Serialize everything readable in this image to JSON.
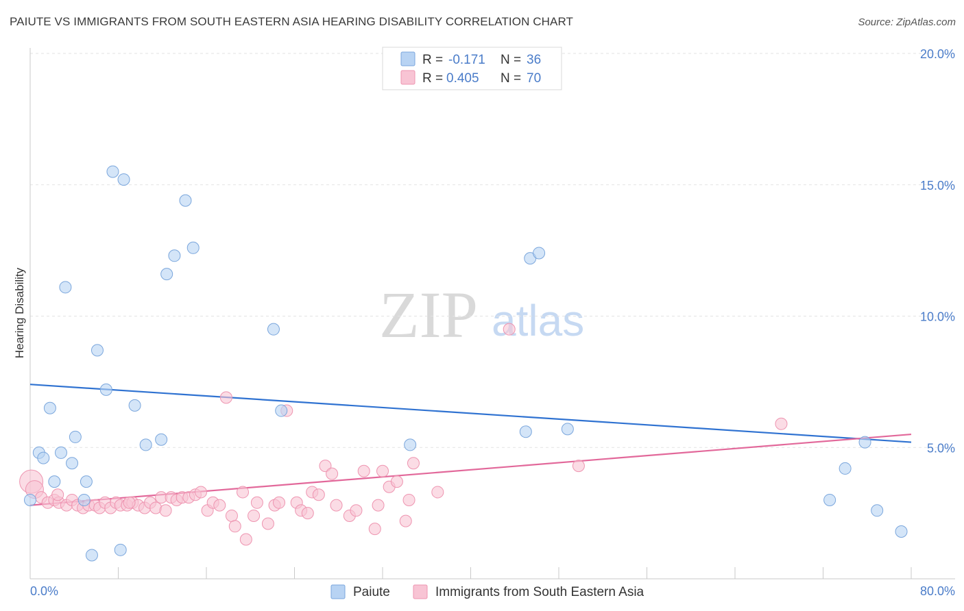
{
  "title": "PAIUTE VS IMMIGRANTS FROM SOUTH EASTERN ASIA HEARING DISABILITY CORRELATION CHART",
  "source": "Source: ZipAtlas.com",
  "watermark": {
    "zip": "ZIP",
    "atlas": "atlas"
  },
  "colors": {
    "paiute_fill": "#b8d3f3",
    "paiute_stroke": "#7aa6dc",
    "paiute_line": "#2f72d1",
    "immig_fill": "#f8c4d4",
    "immig_stroke": "#ee94b0",
    "immig_line": "#e2689a",
    "tick_text": "#4a7cc9",
    "grid": "#e3e3e3"
  },
  "stats_legend": {
    "r_label": "R =",
    "n_label": "N =",
    "rows": [
      {
        "series": "Paiute",
        "r": "-0.171",
        "n": "36"
      },
      {
        "series": "Immigrants from South Eastern Asia",
        "r": "0.405",
        "n": "70"
      }
    ]
  },
  "chart_data": {
    "type": "scatter",
    "title": "PAIUTE VS IMMIGRANTS FROM SOUTH EASTERN ASIA HEARING DISABILITY CORRELATION CHART",
    "xlabel": "",
    "ylabel": "Hearing Disability",
    "xlim": [
      0,
      80
    ],
    "ylim": [
      0,
      20
    ],
    "x_tick_labels": [
      "0.0%",
      "80.0%"
    ],
    "y_ticks": [
      5,
      10,
      15,
      20
    ],
    "y_tick_labels": [
      "5.0%",
      "10.0%",
      "15.0%",
      "20.0%"
    ],
    "grid": true,
    "legend": [
      "Paiute",
      "Immigrants from South Eastern Asia"
    ],
    "series": [
      {
        "name": "Paiute",
        "r": -0.171,
        "n": 36,
        "trend": [
          [
            0,
            7.4
          ],
          [
            80,
            5.2
          ]
        ],
        "points": [
          [
            0.0,
            3.0
          ],
          [
            0.8,
            4.8
          ],
          [
            1.2,
            4.6
          ],
          [
            1.8,
            6.5
          ],
          [
            2.2,
            3.7
          ],
          [
            2.8,
            4.8
          ],
          [
            3.2,
            11.1
          ],
          [
            3.8,
            4.4
          ],
          [
            4.1,
            5.4
          ],
          [
            4.9,
            3.0
          ],
          [
            5.1,
            3.7
          ],
          [
            5.6,
            0.9
          ],
          [
            6.1,
            8.7
          ],
          [
            6.9,
            7.2
          ],
          [
            7.5,
            15.5
          ],
          [
            8.2,
            1.1
          ],
          [
            8.5,
            15.2
          ],
          [
            9.5,
            6.6
          ],
          [
            10.5,
            5.1
          ],
          [
            11.9,
            5.3
          ],
          [
            12.4,
            11.6
          ],
          [
            13.1,
            12.3
          ],
          [
            14.1,
            14.4
          ],
          [
            14.8,
            12.6
          ],
          [
            22.1,
            9.5
          ],
          [
            22.8,
            6.4
          ],
          [
            34.5,
            5.1
          ],
          [
            45.0,
            5.6
          ],
          [
            45.4,
            12.2
          ],
          [
            46.2,
            12.4
          ],
          [
            48.8,
            5.7
          ],
          [
            72.6,
            3.0
          ],
          [
            74.0,
            4.2
          ],
          [
            75.8,
            5.2
          ],
          [
            76.9,
            2.6
          ],
          [
            79.1,
            1.8
          ]
        ]
      },
      {
        "name": "Immigrants from South Eastern Asia",
        "r": 0.405,
        "n": 70,
        "trend": [
          [
            0,
            2.8
          ],
          [
            80,
            5.5
          ]
        ],
        "points": [
          [
            0.1,
            3.7
          ],
          [
            0.4,
            3.4
          ],
          [
            1.0,
            3.1
          ],
          [
            1.6,
            2.9
          ],
          [
            2.2,
            3.0
          ],
          [
            2.6,
            2.9
          ],
          [
            3.3,
            2.8
          ],
          [
            3.8,
            3.0
          ],
          [
            4.3,
            2.8
          ],
          [
            4.8,
            2.7
          ],
          [
            5.3,
            2.8
          ],
          [
            5.9,
            2.8
          ],
          [
            6.3,
            2.7
          ],
          [
            6.8,
            2.9
          ],
          [
            7.3,
            2.7
          ],
          [
            7.8,
            2.9
          ],
          [
            8.2,
            2.8
          ],
          [
            8.8,
            2.8
          ],
          [
            9.3,
            2.9
          ],
          [
            9.8,
            2.8
          ],
          [
            10.4,
            2.7
          ],
          [
            10.9,
            2.9
          ],
          [
            11.4,
            2.7
          ],
          [
            11.9,
            3.1
          ],
          [
            12.3,
            2.6
          ],
          [
            12.8,
            3.1
          ],
          [
            13.3,
            3.0
          ],
          [
            13.8,
            3.1
          ],
          [
            14.4,
            3.1
          ],
          [
            15.0,
            3.2
          ],
          [
            15.5,
            3.3
          ],
          [
            16.1,
            2.6
          ],
          [
            16.6,
            2.9
          ],
          [
            17.2,
            2.8
          ],
          [
            17.8,
            6.9
          ],
          [
            18.3,
            2.4
          ],
          [
            18.6,
            2.0
          ],
          [
            19.3,
            3.3
          ],
          [
            19.6,
            1.5
          ],
          [
            20.3,
            2.4
          ],
          [
            20.6,
            2.9
          ],
          [
            21.6,
            2.1
          ],
          [
            22.2,
            2.8
          ],
          [
            22.6,
            2.9
          ],
          [
            23.3,
            6.4
          ],
          [
            24.2,
            2.9
          ],
          [
            24.6,
            2.6
          ],
          [
            25.2,
            2.5
          ],
          [
            25.6,
            3.3
          ],
          [
            26.2,
            3.2
          ],
          [
            26.8,
            4.3
          ],
          [
            27.4,
            4.0
          ],
          [
            27.8,
            2.8
          ],
          [
            29.0,
            2.4
          ],
          [
            29.6,
            2.6
          ],
          [
            30.3,
            4.1
          ],
          [
            31.3,
            1.9
          ],
          [
            31.6,
            2.8
          ],
          [
            32.0,
            4.1
          ],
          [
            32.6,
            3.5
          ],
          [
            33.3,
            3.7
          ],
          [
            34.1,
            2.2
          ],
          [
            34.4,
            3.0
          ],
          [
            34.8,
            4.4
          ],
          [
            37.0,
            3.3
          ],
          [
            43.5,
            9.5
          ],
          [
            49.8,
            4.3
          ],
          [
            68.2,
            5.9
          ],
          [
            2.5,
            3.2
          ],
          [
            9.0,
            2.9
          ]
        ]
      }
    ]
  }
}
